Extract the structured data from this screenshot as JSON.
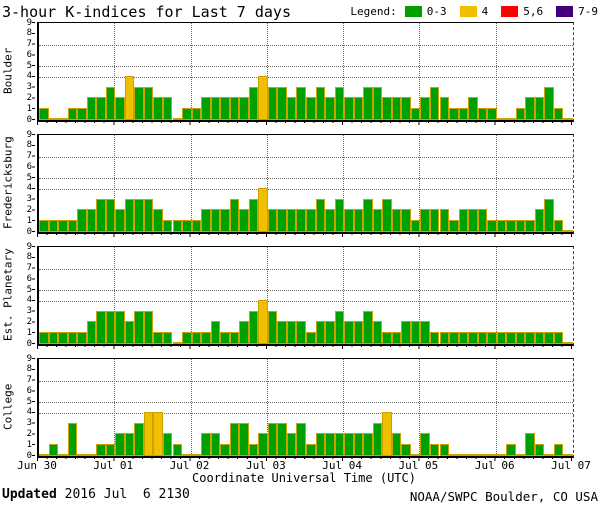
{
  "title": "3-hour K-indices for Last 7 days",
  "legend": {
    "label": "Legend:",
    "items": [
      {
        "label": "0-3",
        "color": "#00A000"
      },
      {
        "label": "4",
        "color": "#F0C000"
      },
      {
        "label": "5,6",
        "color": "#FF0000"
      },
      {
        "label": "7-9",
        "color": "#42007E"
      }
    ]
  },
  "colors": {
    "green": "#00A000",
    "yellow": "#F0C000",
    "red": "#FF0000",
    "purple": "#42007E",
    "bar_outline": "#C9A400",
    "grid": "#6a6a6a"
  },
  "footer": {
    "updated_label": "Updated",
    "updated_value": " 2016 Jul  6 2130",
    "credit": "NOAA/SWPC Boulder, CO USA"
  },
  "chart_data": {
    "type": "bar",
    "title": "3-hour K-indices for Last 7 days",
    "xlabel": "Coordinate Universal Time (UTC)",
    "x_tick_labels": [
      "Jun 30",
      "Jul 01",
      "Jul 02",
      "Jul 03",
      "Jul 04",
      "Jul 05",
      "Jul 06",
      "Jul 07"
    ],
    "hours_per_bar": 3,
    "bars_per_day": 8,
    "ylim": [
      0,
      9
    ],
    "y_ticks": [
      "9",
      "8",
      "7",
      "6",
      "5",
      "4",
      "3",
      "2",
      "1",
      "0"
    ],
    "y_gridlines": [
      4,
      5,
      7
    ],
    "color_rules": [
      {
        "range": "0-3",
        "color": "#00A000"
      },
      {
        "range": "4",
        "color": "#F0C000"
      },
      {
        "range": "5,6",
        "color": "#FF0000"
      },
      {
        "range": "7-9",
        "color": "#42007E"
      }
    ],
    "series": [
      {
        "name": "Boulder",
        "values": [
          1,
          0,
          0,
          1,
          1,
          2,
          2,
          3,
          2,
          4,
          3,
          3,
          2,
          2,
          0,
          1,
          1,
          2,
          2,
          2,
          2,
          2,
          3,
          4,
          3,
          3,
          2,
          3,
          2,
          3,
          2,
          3,
          2,
          2,
          3,
          3,
          2,
          2,
          2,
          1,
          2,
          3,
          2,
          1,
          1,
          2,
          1,
          1,
          0,
          0,
          1,
          2,
          2,
          3,
          1,
          0
        ]
      },
      {
        "name": "Fredericksburg",
        "values": [
          1,
          1,
          1,
          1,
          2,
          2,
          3,
          3,
          2,
          3,
          3,
          3,
          2,
          1,
          1,
          1,
          1,
          2,
          2,
          2,
          3,
          2,
          3,
          4,
          2,
          2,
          2,
          2,
          2,
          3,
          2,
          3,
          2,
          2,
          3,
          2,
          3,
          2,
          2,
          1,
          2,
          2,
          2,
          1,
          2,
          2,
          2,
          1,
          1,
          1,
          1,
          1,
          2,
          3,
          1,
          0
        ]
      },
      {
        "name": "Est. Planetary",
        "values": [
          1,
          1,
          1,
          1,
          1,
          2,
          3,
          3,
          3,
          2,
          3,
          3,
          1,
          1,
          0,
          1,
          1,
          1,
          2,
          1,
          1,
          2,
          3,
          4,
          3,
          2,
          2,
          2,
          1,
          2,
          2,
          3,
          2,
          2,
          3,
          2,
          1,
          1,
          2,
          2,
          2,
          1,
          1,
          1,
          1,
          1,
          1,
          1,
          1,
          1,
          1,
          1,
          1,
          1,
          1,
          0
        ]
      },
      {
        "name": "College",
        "values": [
          0,
          1,
          0,
          3,
          0,
          0,
          1,
          1,
          2,
          2,
          3,
          4,
          4,
          2,
          1,
          0,
          0,
          2,
          2,
          1,
          3,
          3,
          1,
          2,
          3,
          3,
          2,
          3,
          1,
          2,
          2,
          2,
          2,
          2,
          2,
          3,
          4,
          2,
          1,
          0,
          2,
          1,
          1,
          0,
          0,
          0,
          0,
          0,
          0,
          1,
          0,
          2,
          1,
          0,
          1,
          0
        ]
      }
    ]
  }
}
